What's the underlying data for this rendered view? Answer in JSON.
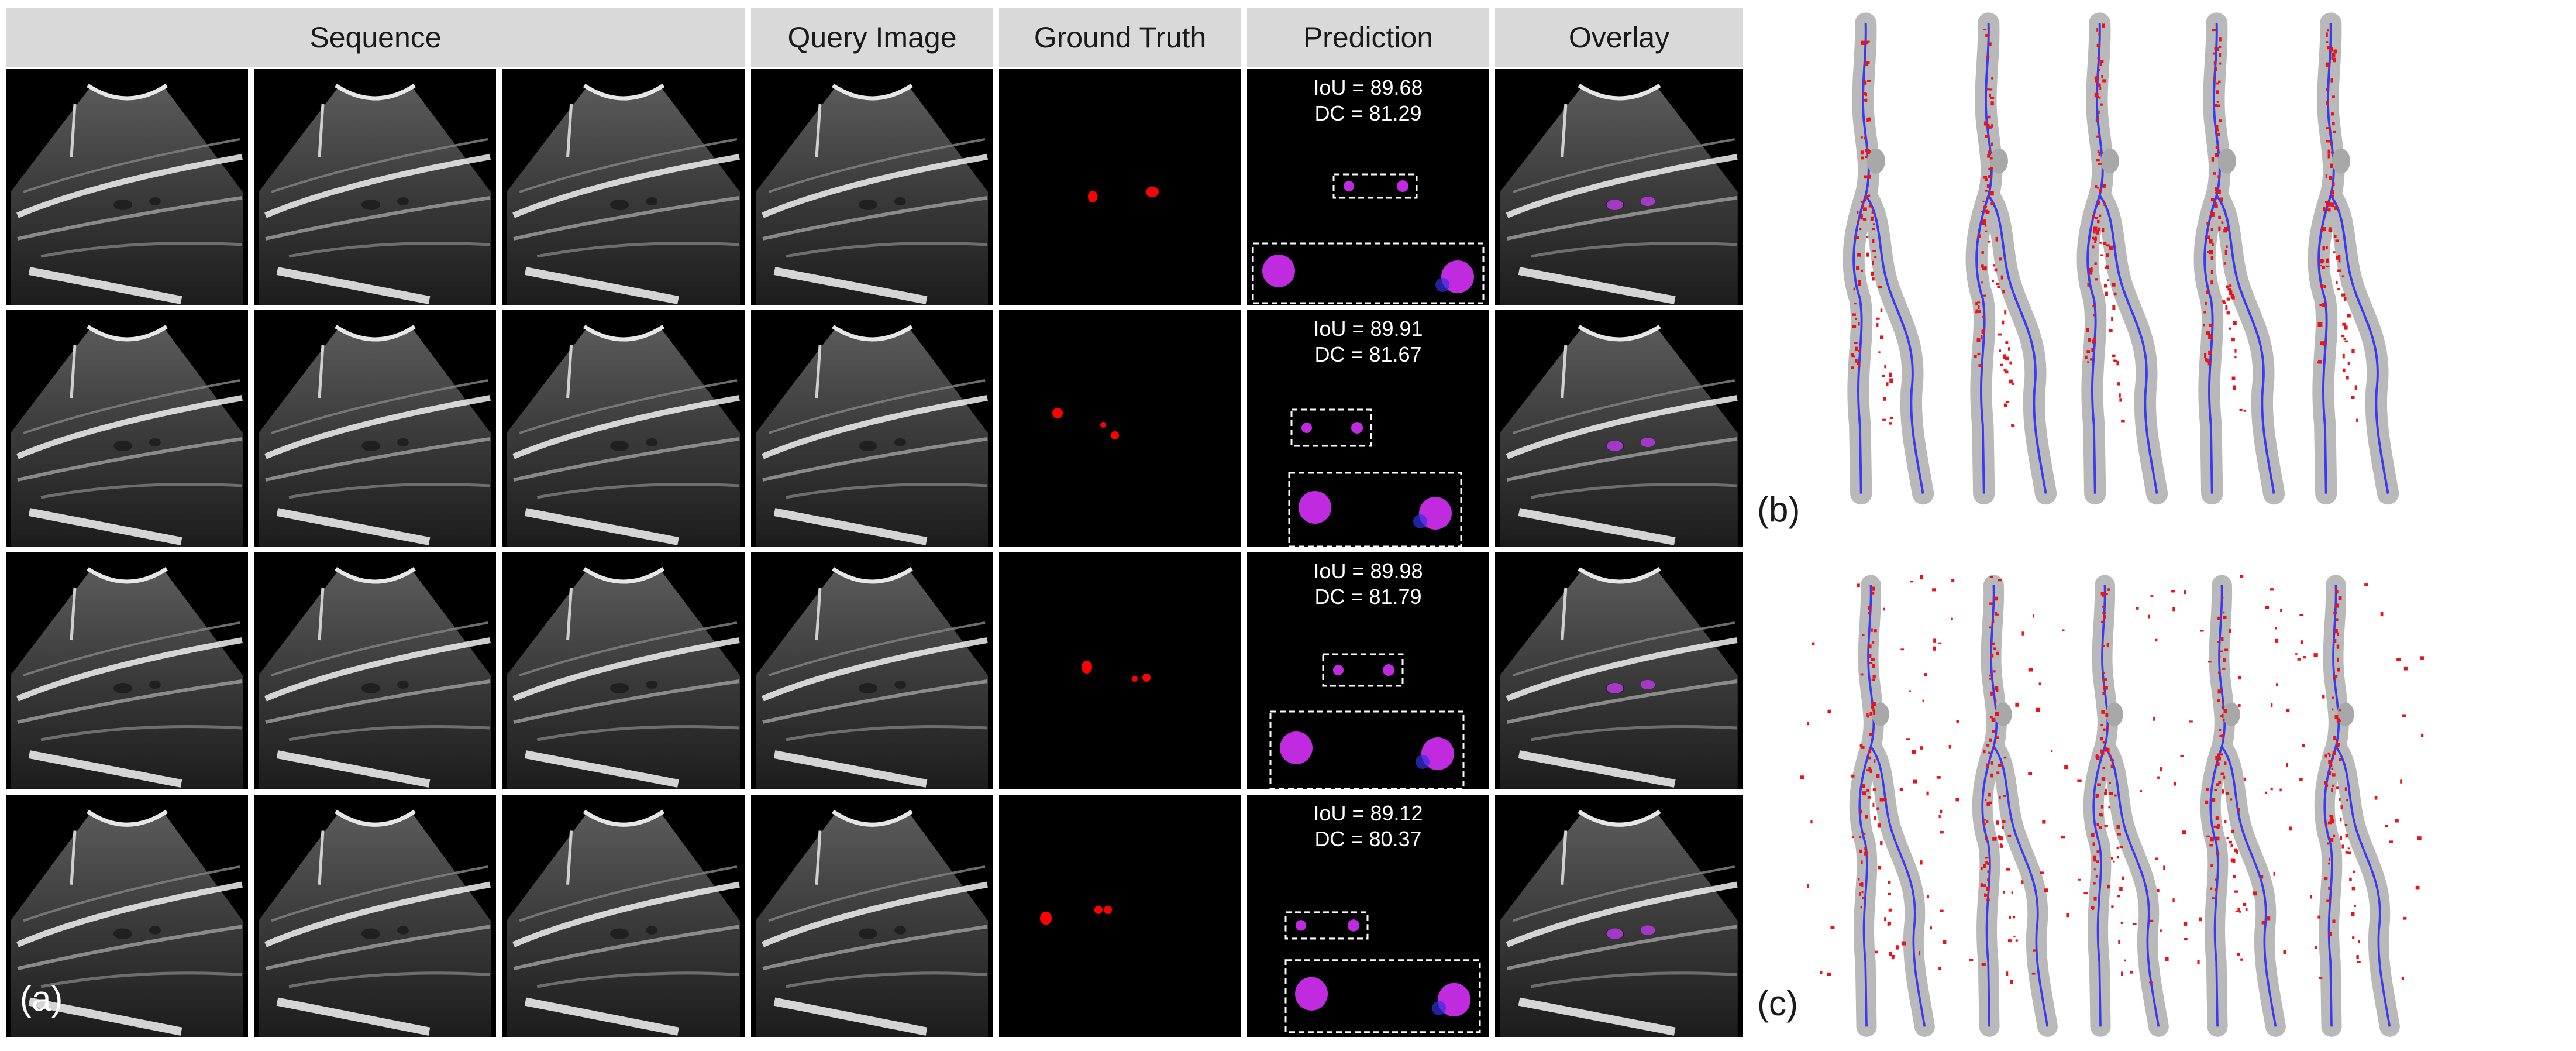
{
  "headers": [
    "Sequence",
    "Query Image",
    "Ground Truth",
    "Prediction",
    "Overlay"
  ],
  "rows": [
    {
      "iou": "IoU = 89.68",
      "dc": "DC = 81.29"
    },
    {
      "iou": "IoU = 89.91",
      "dc": "DC = 81.67"
    },
    {
      "iou": "IoU = 89.98",
      "dc": "DC = 81.79"
    },
    {
      "iou": "IoU = 89.12",
      "dc": "DC = 80.37"
    }
  ],
  "labels": {
    "a": "(a)",
    "b": "(b)",
    "c": "(c)"
  },
  "colors": {
    "header_bg": "#d9d9d9",
    "ground_truth": "#ff0000",
    "prediction": "#c02be0",
    "centerline": "#3a3af0",
    "vessel": "#b9b9b9",
    "points": "#e8141c"
  },
  "icons": {
    "ultrasound": "ultrasound-frame-icon",
    "vessel": "vessel-tree-icon"
  }
}
